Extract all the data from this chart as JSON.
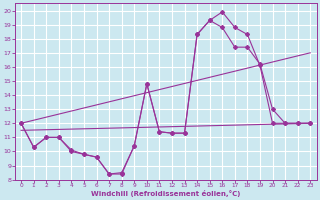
{
  "xlabel": "Windchill (Refroidissement éolien,°C)",
  "background_color": "#cce8f0",
  "grid_color": "#ffffff",
  "line_color": "#993399",
  "xlim": [
    -0.5,
    23.5
  ],
  "ylim": [
    8,
    20.5
  ],
  "xticks": [
    0,
    1,
    2,
    3,
    4,
    5,
    6,
    7,
    8,
    9,
    10,
    11,
    12,
    13,
    14,
    15,
    16,
    17,
    18,
    19,
    20,
    21,
    22,
    23
  ],
  "yticks": [
    8,
    9,
    10,
    11,
    12,
    13,
    14,
    15,
    16,
    17,
    18,
    19,
    20
  ],
  "series_curved1": {
    "x": [
      0,
      1,
      2,
      3,
      4,
      5,
      6,
      7,
      8,
      9,
      10,
      11,
      12,
      13,
      14,
      15,
      16,
      17,
      18,
      19,
      20,
      21,
      22,
      23
    ],
    "y": [
      12,
      10.3,
      11,
      11,
      10.1,
      9.8,
      9.6,
      8.4,
      8.4,
      10.4,
      14.8,
      11.4,
      11.3,
      11.3,
      18.3,
      19.3,
      19.9,
      18.8,
      18.3,
      16.1,
      12.0,
      12.0,
      12.0,
      12.0
    ]
  },
  "series_curved2": {
    "x": [
      0,
      1,
      2,
      3,
      4,
      5,
      6,
      7,
      8,
      9,
      10,
      11,
      12,
      13,
      14,
      15,
      16,
      17,
      18,
      19,
      20,
      21,
      22,
      23
    ],
    "y": [
      12,
      10.3,
      11,
      11,
      10.0,
      9.8,
      9.6,
      8.4,
      8.5,
      10.4,
      14.8,
      11.4,
      11.3,
      11.3,
      18.3,
      19.3,
      18.8,
      17.4,
      17.4,
      16.2,
      13.0,
      12.0,
      12.0,
      12.0
    ]
  },
  "series_flat": {
    "x": [
      0,
      23
    ],
    "y": [
      11.5,
      12.0
    ]
  },
  "series_diag": {
    "x": [
      0,
      23
    ],
    "y": [
      12.0,
      17.0
    ]
  }
}
